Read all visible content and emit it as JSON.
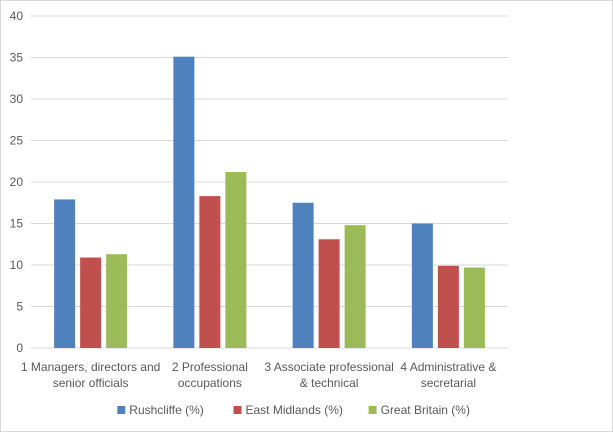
{
  "chart_data": {
    "type": "bar",
    "title": "",
    "xlabel": "",
    "ylabel": "",
    "ylim": [
      0,
      40
    ],
    "yticks": [
      0,
      5,
      10,
      15,
      20,
      25,
      30,
      35,
      40
    ],
    "grid": true,
    "legend_position": "bottom",
    "categories": [
      [
        "1 Managers, directors and",
        "senior officials"
      ],
      [
        "2 Professional",
        "occupations"
      ],
      [
        "3 Associate professional",
        "& technical"
      ],
      [
        "4 Administrative &",
        "secretarial"
      ]
    ],
    "series": [
      {
        "name": "Rushcliffe (%)",
        "color": "#4f81bd",
        "values": [
          17.9,
          35.1,
          17.5,
          15.0
        ]
      },
      {
        "name": "East Midlands (%)",
        "color": "#c0504d",
        "values": [
          10.9,
          18.3,
          13.1,
          9.9
        ]
      },
      {
        "name": "Great Britain (%)",
        "color": "#9bbb59",
        "values": [
          11.3,
          21.2,
          14.8,
          9.7
        ]
      }
    ]
  }
}
